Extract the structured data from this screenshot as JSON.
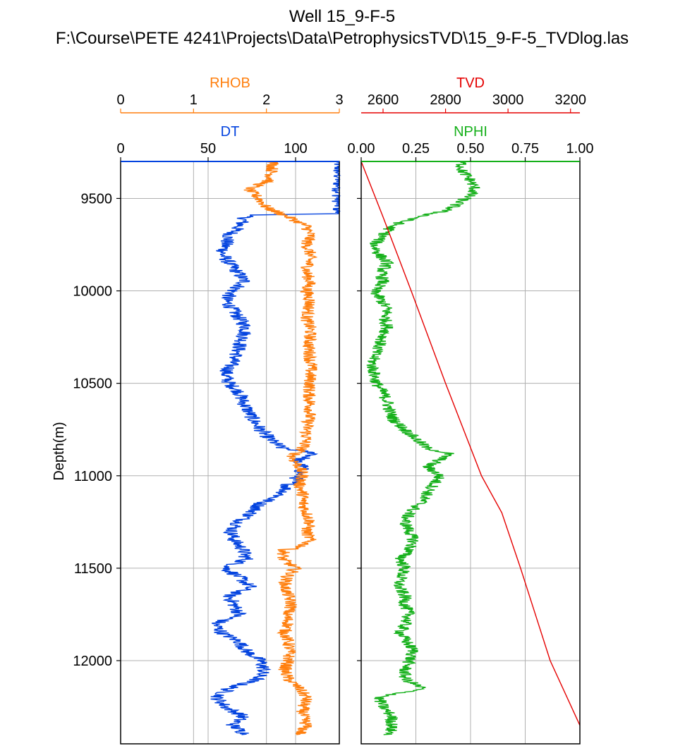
{
  "chart_data": {
    "type": "line",
    "title": "Well 15_9-F-5",
    "subtitle": "F:\\Course\\PETE 4241\\Projects\\Data\\PetrophysicsTVD\\15_9-F-5_TVDlog.las",
    "ylabel": "Depth(m)",
    "ylim": [
      9300,
      12450
    ],
    "yticks": [
      "9500",
      "10000",
      "10500",
      "11000",
      "11500",
      "12000"
    ],
    "grid": true,
    "colors": {
      "RHOB": "#ff7f0e",
      "DT": "#0343df",
      "TVD": "#e50000",
      "NPHI": "#15b01a"
    },
    "tracks": [
      {
        "axes": [
          {
            "name": "RHOB",
            "range": [
              0,
              3
            ],
            "ticks": [
              "0",
              "1",
              "2",
              "3"
            ]
          },
          {
            "name": "DT",
            "range": [
              0,
              125
            ],
            "ticks": [
              "0",
              "50",
              "100"
            ]
          }
        ]
      },
      {
        "axes": [
          {
            "name": "TVD",
            "range": [
              2530,
              3230
            ],
            "ticks": [
              "2600",
              "2800",
              "3000",
              "3200"
            ]
          },
          {
            "name": "NPHI",
            "range": [
              0,
              1
            ],
            "ticks": [
              "0.00",
              "0.25",
              "0.50",
              "0.75",
              "1.00"
            ]
          }
        ]
      }
    ],
    "series": [
      {
        "name": "DT",
        "depth": [
          9300,
          9583,
          9590,
          9650,
          9700,
          9750,
          9800,
          9850,
          9900,
          9950,
          10000,
          10050,
          10100,
          10150,
          10200,
          10250,
          10300,
          10350,
          10400,
          10450,
          10500,
          10550,
          10600,
          10650,
          10700,
          10750,
          10800,
          10850,
          10880,
          10920,
          10950,
          11000,
          11050,
          11100,
          11150,
          11200,
          11250,
          11300,
          11350,
          11400,
          11450,
          11500,
          11550,
          11600,
          11650,
          11700,
          11750,
          11800,
          11850,
          11900,
          11950,
          12000,
          12050,
          12100,
          12150,
          12200,
          12250,
          12300,
          12350,
          12400
        ],
        "values": [
          125,
          125,
          72,
          68,
          62,
          60,
          58,
          62,
          67,
          71,
          64,
          60,
          64,
          68,
          72,
          70,
          68,
          66,
          63,
          60,
          62,
          68,
          70,
          73,
          76,
          80,
          85,
          92,
          112,
          100,
          104,
          102,
          96,
          92,
          80,
          75,
          68,
          63,
          65,
          70,
          72,
          60,
          68,
          74,
          62,
          65,
          68,
          54,
          58,
          68,
          72,
          80,
          82,
          78,
          62,
          55,
          60,
          70,
          64,
          72
        ]
      },
      {
        "name": "RHOB",
        "depth": [
          9300,
          9400,
          9450,
          9500,
          9550,
          9600,
          9650,
          9700,
          9750,
          9800,
          9850,
          9900,
          9950,
          10000,
          10050,
          10100,
          10150,
          10200,
          10250,
          10300,
          10350,
          10390,
          10400,
          10450,
          10500,
          10550,
          10600,
          10650,
          10700,
          10750,
          10800,
          10850,
          10900,
          10950,
          11000,
          11050,
          11100,
          11150,
          11200,
          11250,
          11300,
          11350,
          11390,
          11400,
          11450,
          11500,
          11550,
          11600,
          11650,
          11700,
          11750,
          11800,
          11850,
          11900,
          11950,
          12000,
          12050,
          12100,
          12150,
          12200,
          12250,
          12300,
          12350,
          12400
        ],
        "values": [
          2.1,
          2.05,
          1.75,
          1.9,
          2.0,
          2.3,
          2.55,
          2.6,
          2.55,
          2.6,
          2.58,
          2.55,
          2.6,
          2.55,
          2.6,
          2.58,
          2.55,
          2.6,
          2.6,
          2.58,
          2.6,
          2.6,
          2.62,
          2.6,
          2.6,
          2.58,
          2.6,
          2.6,
          2.58,
          2.55,
          2.55,
          2.5,
          2.35,
          2.45,
          2.5,
          2.45,
          2.5,
          2.5,
          2.55,
          2.6,
          2.55,
          2.6,
          2.45,
          2.25,
          2.22,
          2.4,
          2.28,
          2.25,
          2.3,
          2.35,
          2.28,
          2.3,
          2.25,
          2.3,
          2.32,
          2.3,
          2.25,
          2.3,
          2.45,
          2.55,
          2.5,
          2.5,
          2.55,
          2.45
        ]
      },
      {
        "name": "NPHI",
        "depth": [
          9300,
          9350,
          9400,
          9450,
          9480,
          9520,
          9560,
          9590,
          9620,
          9650,
          9700,
          9750,
          9800,
          9850,
          9900,
          9950,
          10000,
          10050,
          10100,
          10150,
          10200,
          10250,
          10300,
          10350,
          10400,
          10450,
          10500,
          10550,
          10600,
          10650,
          10700,
          10750,
          10800,
          10850,
          10880,
          10920,
          10950,
          11000,
          11050,
          11100,
          11150,
          11200,
          11250,
          11300,
          11350,
          11400,
          11450,
          11500,
          11550,
          11600,
          11650,
          11700,
          11750,
          11800,
          11850,
          11900,
          11950,
          12000,
          12050,
          12100,
          12150,
          12200,
          12250,
          12300,
          12350,
          12400
        ],
        "values": [
          0.46,
          0.46,
          0.5,
          0.52,
          0.5,
          0.45,
          0.4,
          0.3,
          0.2,
          0.14,
          0.1,
          0.06,
          0.08,
          0.12,
          0.09,
          0.1,
          0.06,
          0.09,
          0.12,
          0.11,
          0.12,
          0.1,
          0.08,
          0.06,
          0.05,
          0.06,
          0.07,
          0.1,
          0.12,
          0.13,
          0.15,
          0.2,
          0.25,
          0.3,
          0.4,
          0.35,
          0.3,
          0.36,
          0.33,
          0.3,
          0.27,
          0.22,
          0.2,
          0.22,
          0.24,
          0.22,
          0.18,
          0.2,
          0.18,
          0.17,
          0.2,
          0.2,
          0.22,
          0.2,
          0.18,
          0.21,
          0.24,
          0.22,
          0.2,
          0.2,
          0.28,
          0.08,
          0.1,
          0.14,
          0.14,
          0.13
        ]
      },
      {
        "name": "TVD",
        "depth": [
          9300,
          9600,
          10000,
          10500,
          11000,
          11200,
          11500,
          12000,
          12350
        ],
        "values": [
          2530,
          2600,
          2690,
          2800,
          2915,
          2980,
          3040,
          3135,
          3230
        ]
      }
    ]
  }
}
